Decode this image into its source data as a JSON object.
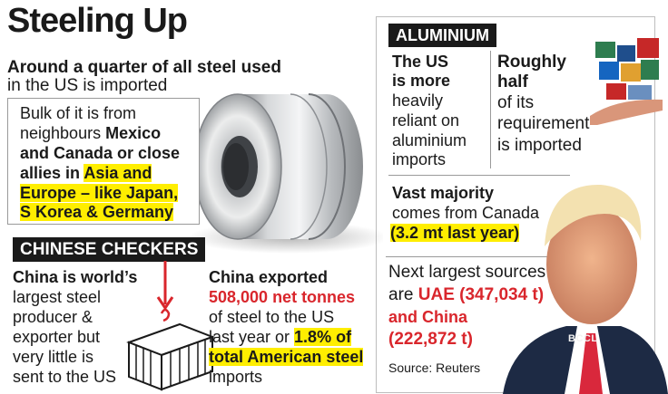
{
  "title": "Steeling Up",
  "intro": {
    "line1": "Around a quarter of all steel used",
    "line2": "in the US is imported"
  },
  "steel_box": {
    "l1": "Bulk of it is from",
    "l2a": "neighbours ",
    "l2b": "Mexico",
    "l3": "and Canada or close",
    "l4a": "allies in ",
    "l4b": "Asia and",
    "l5": "Europe – like Japan,",
    "l6": "S Korea & Germany"
  },
  "chinese": {
    "label": "CHINESE CHECKERS",
    "left": {
      "l1": "China is world’s",
      "l2": "largest steel",
      "l3": "producer &",
      "l4": "exporter but",
      "l5": "very little is",
      "l6": "sent to the US"
    },
    "right": {
      "l1": "China exported",
      "l2": "508,000 net tonnes",
      "l3": "of steel to the US",
      "l4a": "last year or ",
      "l4b": "1.8% of",
      "l5": "total American steel",
      "l6": "imports"
    }
  },
  "aluminium": {
    "label": "ALUMINIUM",
    "us": {
      "l1": "The US",
      "l2": "is more",
      "l3": "heavily",
      "l4": "reliant on",
      "l5": "aluminium",
      "l6": "imports"
    },
    "half": {
      "l1": "Roughly",
      "l2": "half",
      "l3": "of its",
      "l4": "requirement",
      "l5": "is imported"
    },
    "majority": {
      "l1": "Vast majority",
      "l2": "comes from Canada",
      "l3": "(3.2 mt last year)"
    },
    "sources": {
      "l1": "Next largest sources",
      "l2a": "are ",
      "l2b": "UAE (347,034 t)",
      "l3": "and China",
      "l4": "(222,872 t)"
    },
    "source_note": "Source: Reuters"
  },
  "photo_credit": "BCCL",
  "colors": {
    "highlight": "#ffee00",
    "red": "#d9262c",
    "label_bg": "#1a1a1a"
  }
}
